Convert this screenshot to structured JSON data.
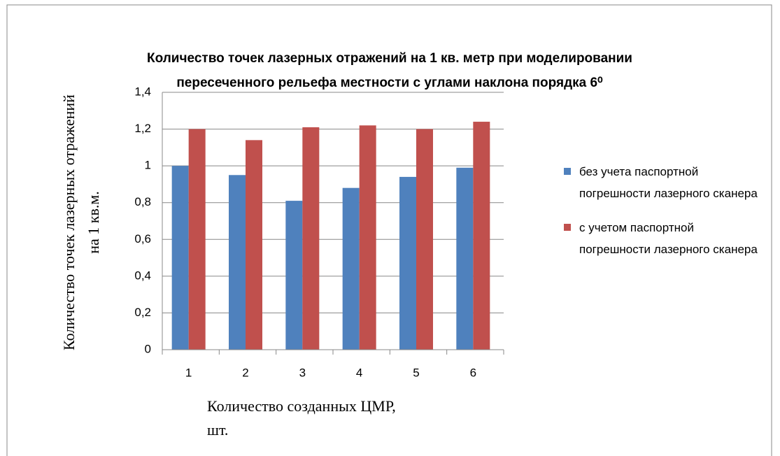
{
  "chart_data": {
    "type": "bar",
    "title": [
      "Количество точек лазерных отражений на 1 кв. метр  при моделировании",
      "пересеченного  рельефа местности с углами наклона порядка 6⁰"
    ],
    "ylabel": [
      "Количество точек лазерных отражений",
      "на 1 кв.м."
    ],
    "xlabel": [
      "Количество созданных  ЦМР,",
      "шт."
    ],
    "categories": [
      "1",
      "2",
      "3",
      "4",
      "5",
      "6"
    ],
    "series": [
      {
        "name": "без учета паспортной погрешности лазерного сканера",
        "color": "#4f81bd",
        "values": [
          1.0,
          0.95,
          0.81,
          0.88,
          0.94,
          0.99
        ]
      },
      {
        "name": "с учетом паспортной погрешности лазерного сканера",
        "color": "#c0504d",
        "values": [
          1.2,
          1.14,
          1.21,
          1.22,
          1.2,
          1.24
        ]
      }
    ],
    "ylim": [
      0,
      1.4
    ],
    "yticks": [
      0,
      {
        "value": 0.2,
        "label": "0,2"
      },
      {
        "value": 0.4,
        "label": "0,4"
      },
      {
        "value": 0.6,
        "label": "0,6"
      },
      {
        "value": 0.8,
        "label": "0,8"
      },
      1,
      {
        "value": 1.2,
        "label": "1,2"
      },
      {
        "value": 1.4,
        "label": "1,4"
      }
    ],
    "grid": true,
    "legend": "right"
  }
}
